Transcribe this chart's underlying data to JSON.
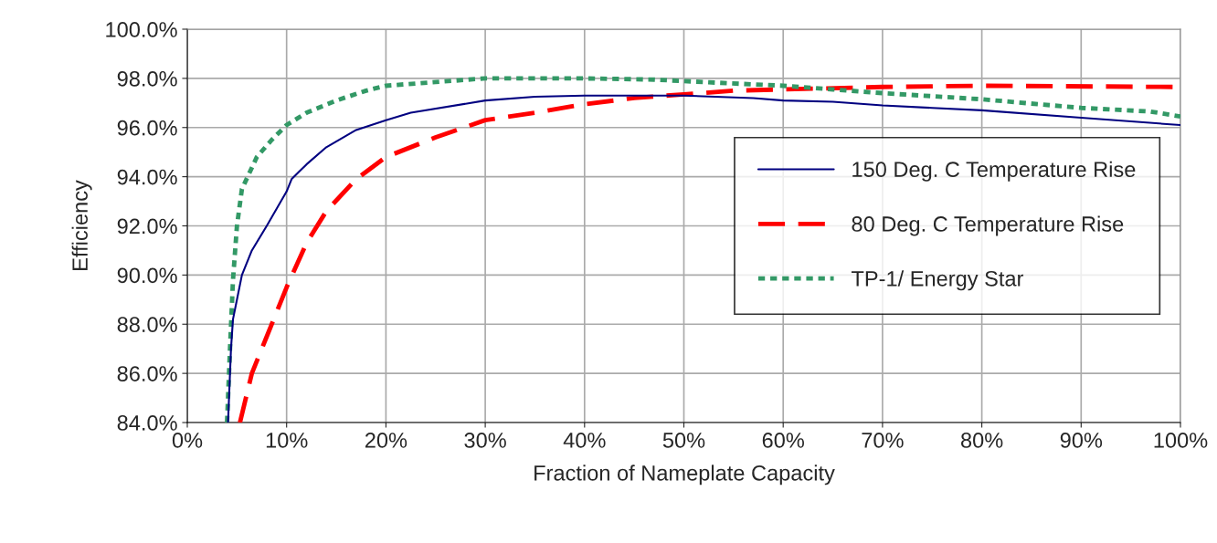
{
  "chart_data": {
    "type": "line",
    "xlabel": "Fraction of Nameplate Capacity",
    "ylabel": "Efficiency",
    "series": [
      {
        "name": "150 Deg. C Temperature Rise",
        "color": "#000080",
        "line_style": "solid",
        "x": [
          4.1,
          4.4,
          4.6,
          5,
          5.5,
          6.5,
          8,
          10,
          10.5,
          11.5,
          12,
          14,
          17,
          20,
          22.5,
          30,
          35,
          40,
          50,
          57,
          60,
          65,
          70,
          75,
          80,
          90,
          100
        ],
        "values": [
          84,
          87,
          88.2,
          89,
          90,
          91,
          92,
          93.4,
          93.9,
          94.3,
          94.5,
          95.2,
          95.9,
          96.3,
          96.6,
          97.1,
          97.25,
          97.3,
          97.3,
          97.2,
          97.1,
          97.05,
          96.9,
          96.8,
          96.7,
          96.4,
          96.1
        ]
      },
      {
        "name": "80 Deg. C Temperature Rise",
        "color": "#ff0000",
        "line_style": "dashed",
        "x": [
          5.3,
          6.5,
          8,
          10,
          12,
          14,
          17,
          20,
          25,
          30,
          35,
          40,
          45,
          50,
          55,
          60,
          70,
          80,
          100
        ],
        "values": [
          84,
          86,
          87.5,
          89.5,
          91.3,
          92.6,
          93.9,
          94.8,
          95.6,
          96.3,
          96.6,
          96.95,
          97.2,
          97.35,
          97.5,
          97.55,
          97.65,
          97.7,
          97.65
        ]
      },
      {
        "name": "TP-1/ Energy Star",
        "color": "#339966",
        "line_style": "dotted",
        "x": [
          4.0,
          4.3,
          4.6,
          5,
          5.5,
          7,
          8.5,
          10,
          12,
          15,
          18,
          20,
          25,
          30,
          40,
          47,
          52,
          60,
          65,
          70,
          80,
          90,
          97,
          100
        ],
        "values": [
          84,
          87,
          89.8,
          92,
          93.5,
          94.8,
          95.5,
          96.1,
          96.6,
          97.1,
          97.5,
          97.7,
          97.85,
          98.0,
          98.0,
          97.95,
          97.85,
          97.7,
          97.55,
          97.4,
          97.15,
          96.8,
          96.65,
          96.45
        ]
      }
    ],
    "xlim": [
      0,
      100
    ],
    "xticks": [
      {
        "value": 0,
        "label": "0%"
      },
      {
        "value": 10,
        "label": "10%"
      },
      {
        "value": 20,
        "label": "20%"
      },
      {
        "value": 30,
        "label": "30%"
      },
      {
        "value": 40,
        "label": "40%"
      },
      {
        "value": 50,
        "label": "50%"
      },
      {
        "value": 60,
        "label": "60%"
      },
      {
        "value": 70,
        "label": "70%"
      },
      {
        "value": 80,
        "label": "80%"
      },
      {
        "value": 90,
        "label": "90%"
      },
      {
        "value": 100,
        "label": "100%"
      }
    ],
    "ylim": [
      84,
      100
    ],
    "yticks": [
      {
        "value": 84,
        "label": "84.0%"
      },
      {
        "value": 86,
        "label": "86.0%"
      },
      {
        "value": 88,
        "label": "88.0%"
      },
      {
        "value": 90,
        "label": "90.0%"
      },
      {
        "value": 92,
        "label": "92.0%"
      },
      {
        "value": 94,
        "label": "94.0%"
      },
      {
        "value": 96,
        "label": "96.0%"
      },
      {
        "value": 98,
        "label": "98.0%"
      },
      {
        "value": 100,
        "label": "100.0%"
      }
    ],
    "grid": true,
    "legend": "right",
    "marker": "none"
  }
}
